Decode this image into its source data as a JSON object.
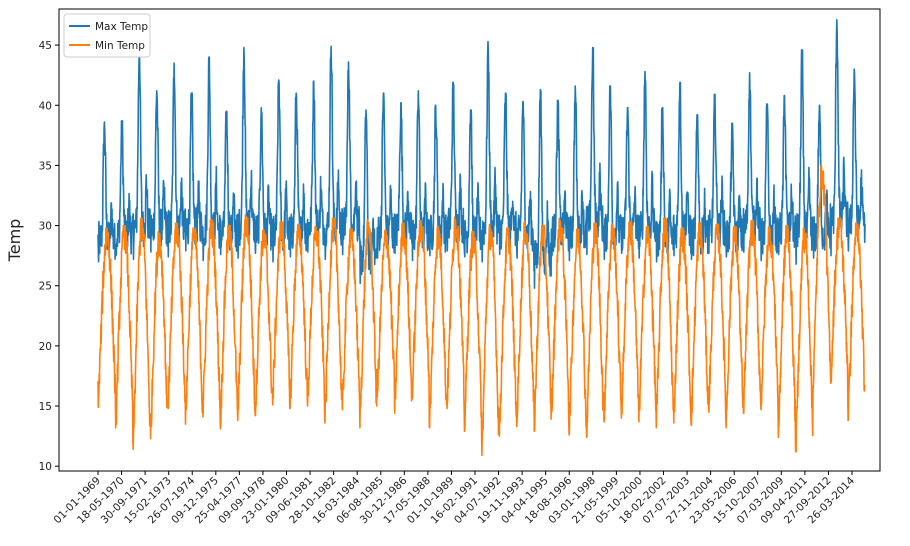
{
  "chart_data": {
    "type": "line",
    "title": "",
    "xlabel": "",
    "ylabel": "Temp",
    "ylim": [
      9.6,
      48.0
    ],
    "yticks": [
      10,
      15,
      20,
      25,
      30,
      35,
      40,
      45
    ],
    "xtick_labels": [
      "01-01-1969",
      "18-05-1970",
      "30-09-1971",
      "15-02-1973",
      "26-07-1974",
      "09-12-1975",
      "25-04-1977",
      "09-09-1978",
      "23-01-1980",
      "09-06-1981",
      "28-10-1982",
      "16-03-1984",
      "06-08-1985",
      "30-12-1986",
      "17-05-1988",
      "01-10-1989",
      "16-02-1991",
      "04-07-1992",
      "19-11-1993",
      "04-04-1995",
      "18-08-1996",
      "03-01-1998",
      "21-05-1999",
      "05-10-2000",
      "18-02-2002",
      "07-07-2003",
      "27-11-2004",
      "23-05-2006",
      "15-10-2007",
      "07-03-2009",
      "09-04-2011",
      "27-09-2012",
      "26-03-2014"
    ],
    "grid": false,
    "legend_position": "top-left",
    "series": [
      {
        "name": "Max Temp",
        "color": "#1f77b4",
        "daily_pattern": "annual cycle, approx. 1969-01-01 to 2014-10",
        "annual_max_values": [
          38.6,
          38.7,
          44.7,
          41.2,
          43.5,
          41.0,
          44.0,
          39.5,
          44.8,
          39.8,
          42.1,
          41.0,
          42.0,
          44.9,
          43.6,
          39.6,
          41.0,
          40.2,
          41.2,
          40.0,
          41.9,
          39.6,
          45.3,
          41.0,
          40.3,
          41.3,
          40.4,
          41.6,
          44.8,
          41.6,
          39.8,
          42.8,
          39.8,
          41.9,
          39.2,
          40.9,
          38.5,
          42.7,
          40.1,
          40.8,
          44.6,
          40.0,
          47.1,
          43.0
        ],
        "annual_min_values": [
          27.0,
          27.5,
          27.2,
          27.8,
          27.4,
          27.9,
          27.1,
          27.6,
          27.3,
          27.7,
          27.0,
          27.4,
          27.8,
          27.2,
          27.6,
          25.2,
          27.3,
          27.7,
          27.1,
          27.5,
          27.9,
          27.4,
          27.0,
          27.6,
          27.3,
          24.8,
          27.5,
          27.1,
          27.6,
          27.2,
          27.7,
          27.3,
          27.0,
          27.5,
          27.2,
          27.7,
          27.4,
          27.8,
          27.1,
          27.6,
          26.8,
          27.3,
          27.5,
          27.9
        ]
      },
      {
        "name": "Min Temp",
        "color": "#ff7f0e",
        "daily_pattern": "annual cycle, approx. 1969-01-01 to 2014-10",
        "annual_max_values": [
          29.8,
          30.0,
          30.6,
          29.5,
          30.2,
          29.8,
          30.5,
          30.0,
          30.9,
          29.6,
          30.3,
          30.1,
          29.9,
          30.6,
          29.7,
          30.5,
          29.6,
          30.2,
          30.4,
          29.9,
          30.7,
          29.5,
          30.1,
          29.8,
          30.3,
          30.0,
          30.6,
          29.7,
          30.2,
          30.1,
          30.3,
          29.9,
          30.6,
          29.8,
          30.2,
          30.1,
          29.9,
          30.4,
          29.9,
          30.0,
          29.8,
          35.0,
          30.6,
          30.2
        ],
        "annual_min_values": [
          14.9,
          13.2,
          11.4,
          12.3,
          14.8,
          13.5,
          14.1,
          13.1,
          13.8,
          14.2,
          15.1,
          14.8,
          15.0,
          13.6,
          14.7,
          13.2,
          15.8,
          14.4,
          15.6,
          13.2,
          14.8,
          12.9,
          10.9,
          12.5,
          13.3,
          12.9,
          14.5,
          12.6,
          12.4,
          13.7,
          14.0,
          13.7,
          13.2,
          13.6,
          13.4,
          14.5,
          13.2,
          14.4,
          14.7,
          12.4,
          11.2,
          16.5,
          16.9,
          13.8
        ]
      }
    ]
  }
}
